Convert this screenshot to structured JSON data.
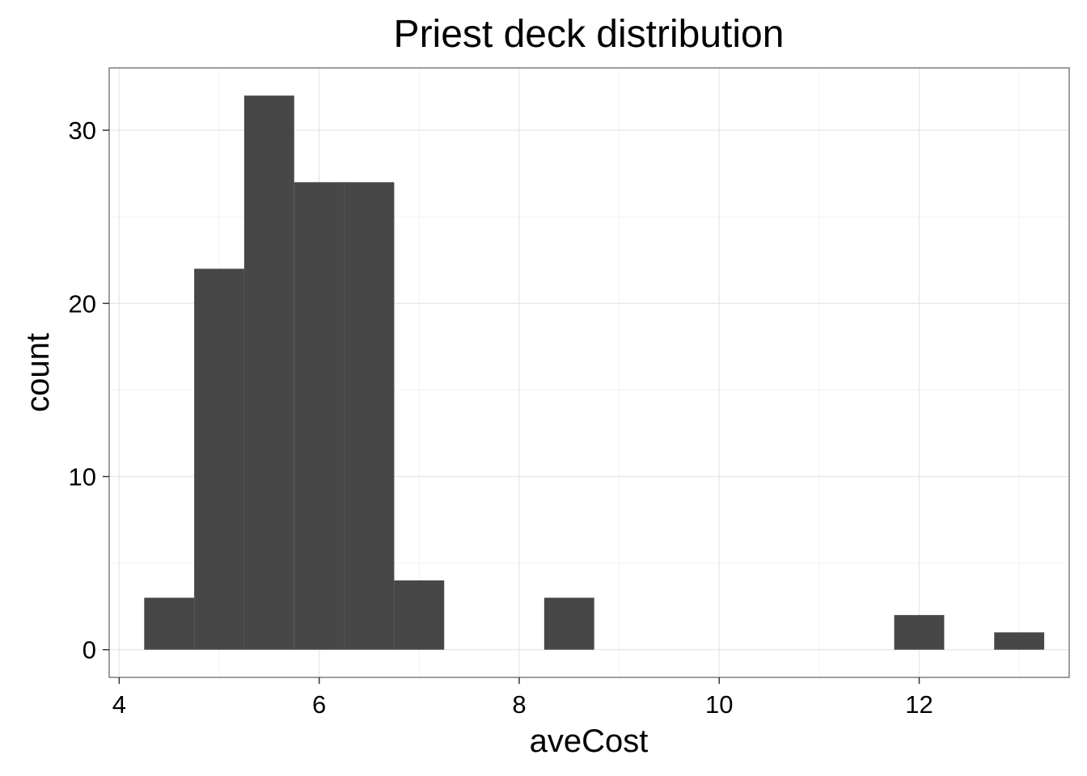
{
  "chart_data": {
    "type": "bar",
    "title": "Priest deck distribution",
    "xlabel": "aveCost",
    "ylabel": "count",
    "xlim": [
      3.9,
      13.5
    ],
    "ylim": [
      -1.6,
      33.6
    ],
    "x_ticks": [
      4,
      6,
      8,
      10,
      12
    ],
    "y_ticks": [
      0,
      10,
      20,
      30
    ],
    "x_minor_ticks": [
      5,
      7,
      9,
      11,
      13
    ],
    "y_minor_ticks": [
      5,
      15,
      25
    ],
    "grid": true,
    "bin_width": 0.5,
    "bins": [
      {
        "x0": 4.25,
        "x1": 4.75,
        "count": 3
      },
      {
        "x0": 4.75,
        "x1": 5.25,
        "count": 22
      },
      {
        "x0": 5.25,
        "x1": 5.75,
        "count": 32
      },
      {
        "x0": 5.75,
        "x1": 6.25,
        "count": 27
      },
      {
        "x0": 6.25,
        "x1": 6.75,
        "count": 27
      },
      {
        "x0": 6.75,
        "x1": 7.25,
        "count": 4
      },
      {
        "x0": 8.25,
        "x1": 8.75,
        "count": 3
      },
      {
        "x0": 11.75,
        "x1": 12.25,
        "count": 2
      },
      {
        "x0": 12.75,
        "x1": 13.25,
        "count": 1
      }
    ],
    "colors": {
      "bar": "#474747",
      "panel_border": "#7f7f7f",
      "grid_major": "#e5e5e5",
      "grid_minor": "#f2f2f2",
      "axis_ticks": "#333333"
    }
  }
}
